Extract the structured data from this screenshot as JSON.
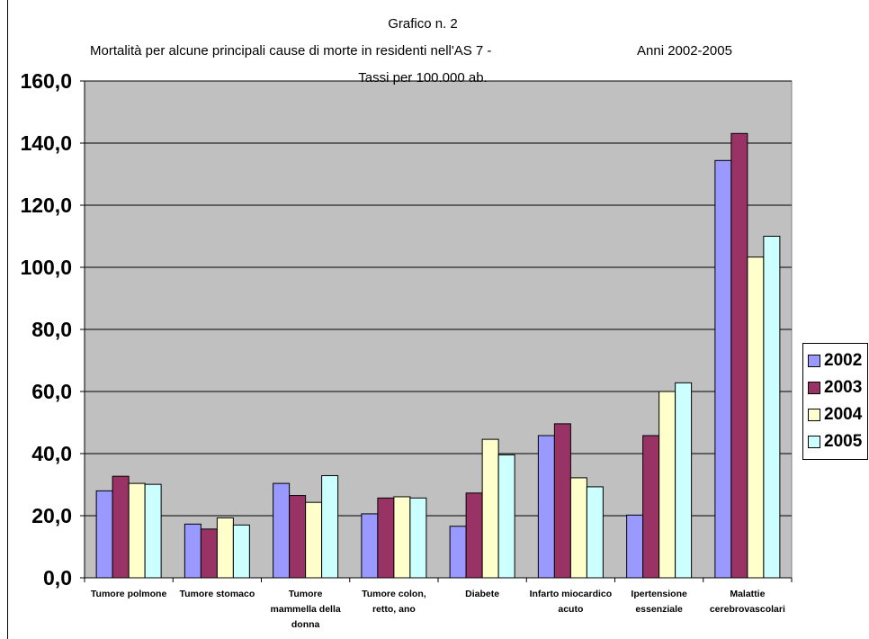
{
  "header": {
    "title_line1": "Grafico n. 2",
    "title_line2a": "Mortalità per alcune principali cause di morte in residenti nell'AS 7 -",
    "title_line2b": "Anni 2002-2005",
    "title_line3": "Tassi per 100.000 ab."
  },
  "chart_data": {
    "type": "bar",
    "title": "Grafico n. 2 — Mortalità per alcune principali cause di morte in residenti nell'AS 7 - Anni 2002-2005 — Tassi per 100.000 ab.",
    "categories": [
      [
        "Tumore polmone"
      ],
      [
        "Tumore stomaco"
      ],
      [
        "Tumore",
        "mammella della",
        "donna"
      ],
      [
        "Tumore colon,",
        "retto, ano"
      ],
      [
        "Diabete"
      ],
      [
        "Infarto miocardico",
        "acuto"
      ],
      [
        "Ipertensione",
        "essenziale"
      ],
      [
        "Malattie",
        "cerebrovascolari"
      ]
    ],
    "series": [
      {
        "name": "2002",
        "color": "#9999FF",
        "values": [
          28,
          17.3,
          30.4,
          20.6,
          16.6,
          45.8,
          20.2,
          134.4
        ]
      },
      {
        "name": "2003",
        "color": "#993366",
        "values": [
          32.7,
          15.7,
          26.5,
          25.7,
          27.3,
          49.6,
          45.8,
          143.1
        ]
      },
      {
        "name": "2004",
        "color": "#FFFFCC",
        "values": [
          30.4,
          19.3,
          24.3,
          26.1,
          44.6,
          32.2,
          60,
          103.3
        ]
      },
      {
        "name": "2005",
        "color": "#CCFFFF",
        "values": [
          30.1,
          17,
          32.9,
          25.7,
          39.6,
          29.3,
          62.8,
          110
        ]
      }
    ],
    "yticks": [
      "0,0",
      "20,0",
      "40,0",
      "60,0",
      "80,0",
      "100,0",
      "120,0",
      "140,0",
      "160,0"
    ],
    "ylim": [
      0,
      160
    ],
    "ytick_step": 20,
    "grid": true,
    "plot_bg": "#C0C0C0",
    "legend_position": "right"
  }
}
